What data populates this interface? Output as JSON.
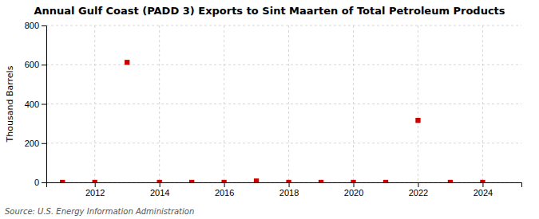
{
  "chart_data": {
    "type": "scatter",
    "title": "Annual Gulf Coast (PADD 3) Exports to Sint Maarten of Total Petroleum Products",
    "ylabel": "Thousand Barrels",
    "annotations": [
      "Source: U.S. Energy Information Administration"
    ],
    "x": [
      2011,
      2012,
      2013,
      2014,
      2015,
      2016,
      2017,
      2018,
      2019,
      2020,
      2021,
      2022,
      2023,
      2024
    ],
    "values": [
      0,
      0,
      612,
      0,
      0,
      0,
      7,
      0,
      0,
      0,
      0,
      316,
      0,
      0
    ],
    "color": "#cc0000",
    "marker": "square",
    "xlim": [
      2010.5,
      2025.2
    ],
    "xticks": [
      2012,
      2014,
      2016,
      2018,
      2020,
      2022,
      2024
    ],
    "ylim": [
      0,
      800
    ],
    "yticks": [
      0,
      200,
      400,
      600,
      800
    ],
    "grid": true
  }
}
